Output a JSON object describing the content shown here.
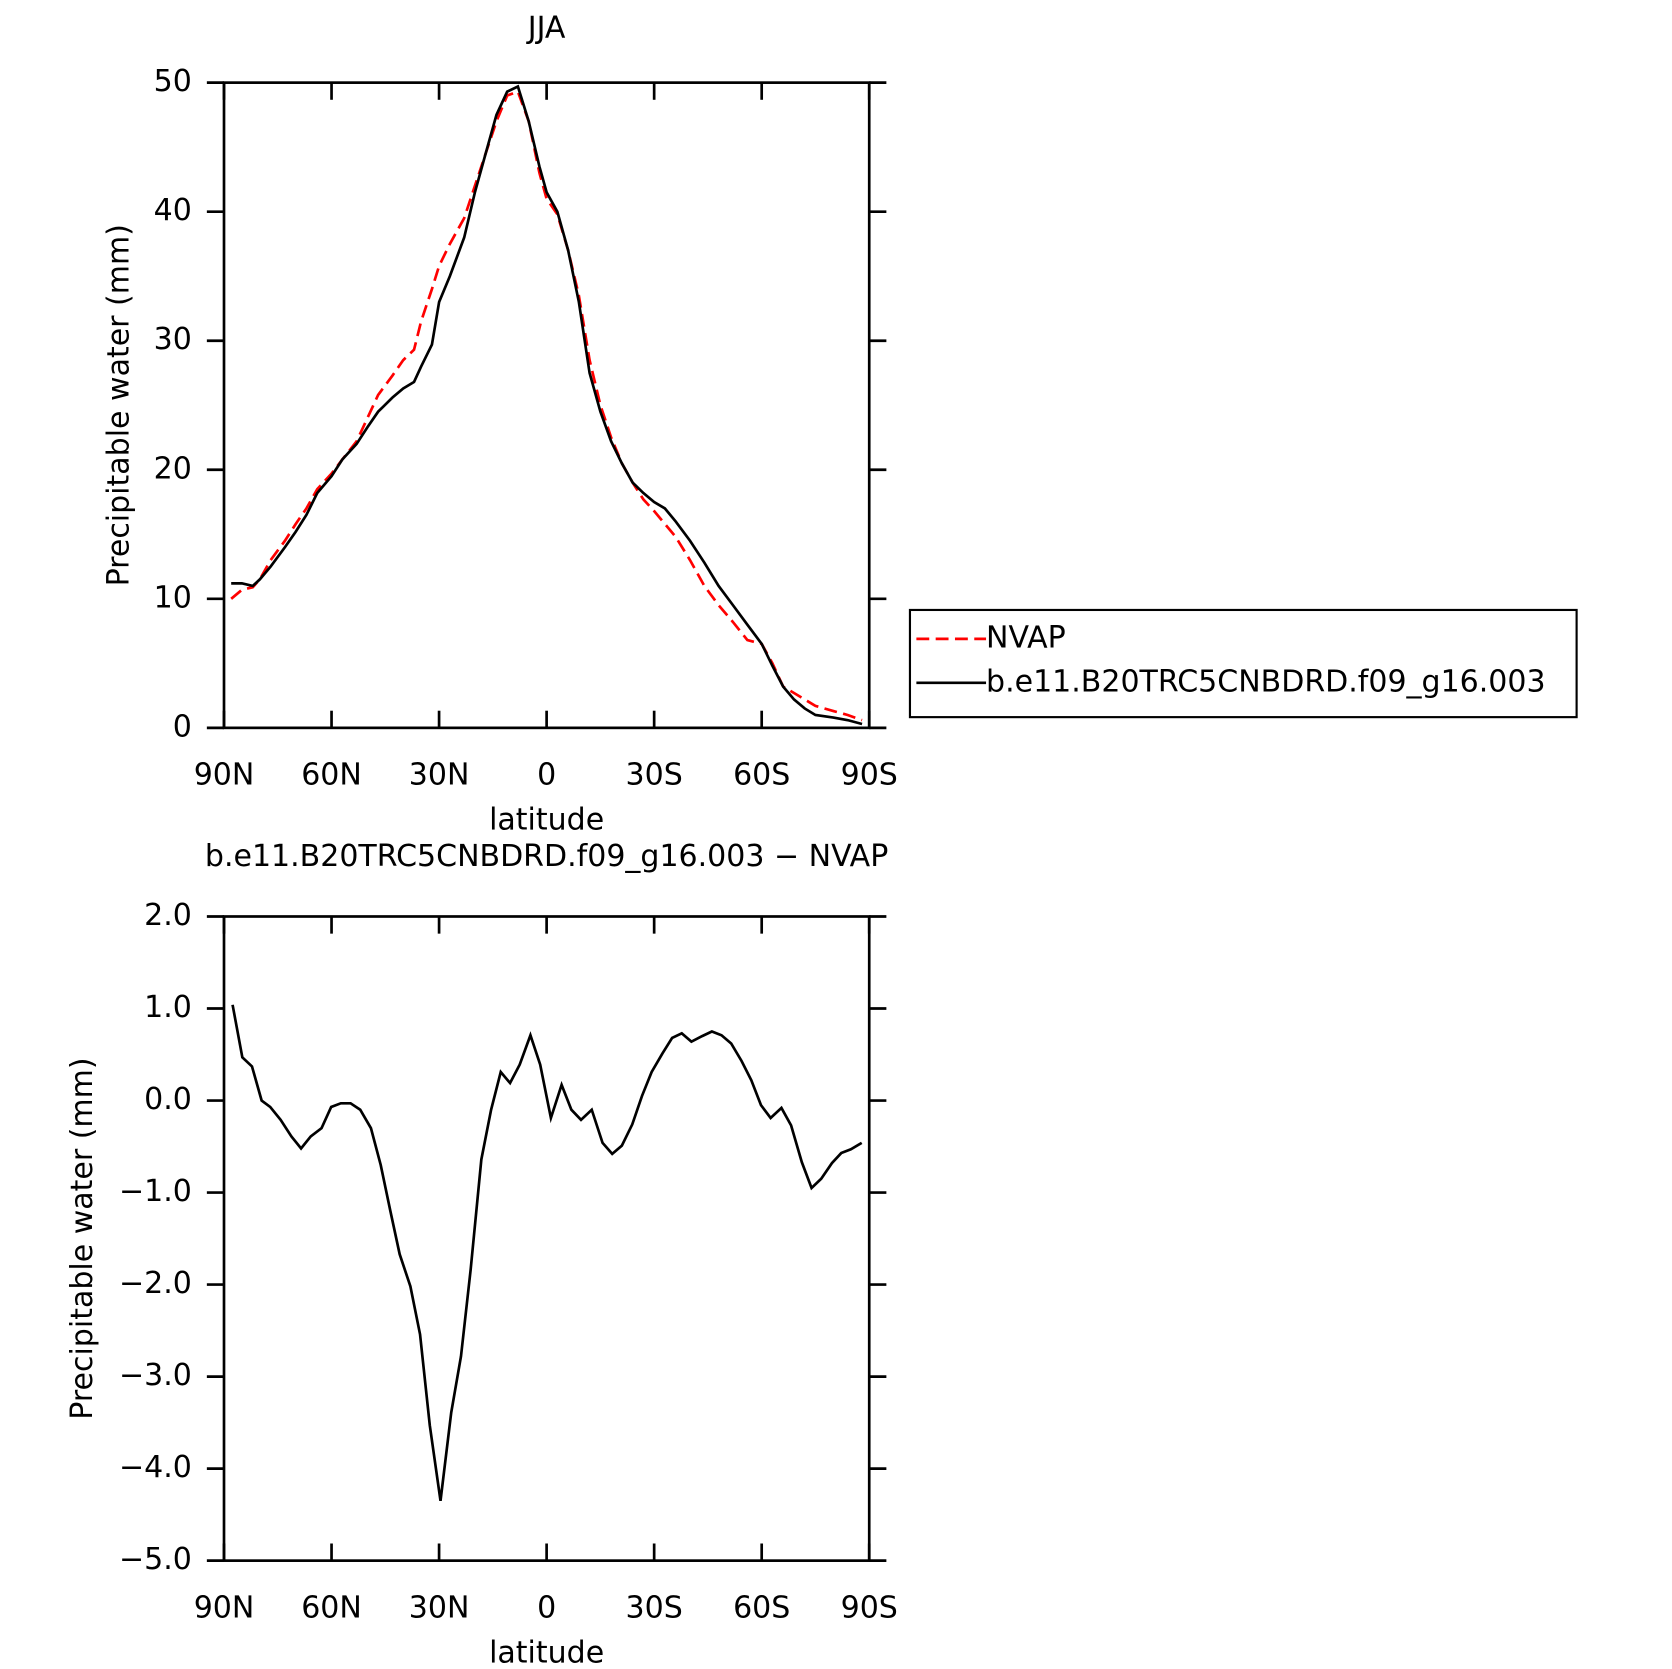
{
  "chart_data": [
    {
      "type": "line",
      "title": "JJA",
      "xlabel": "latitude",
      "ylabel": "Precipitable water (mm)",
      "xlim": [
        90,
        -90
      ],
      "xticks": [
        {
          "value": 90,
          "label": "90N"
        },
        {
          "value": 60,
          "label": "60N"
        },
        {
          "value": 30,
          "label": "30N"
        },
        0,
        {
          "value": -30,
          "label": "30S"
        },
        {
          "value": -60,
          "label": "60S"
        },
        {
          "value": -90,
          "label": "90S"
        }
      ],
      "ylim": [
        0,
        50
      ],
      "yticks": [
        0,
        10,
        20,
        30,
        40,
        50
      ],
      "legend": "right",
      "x": [
        88,
        85,
        82,
        80,
        77,
        73,
        70,
        67,
        64,
        60,
        57,
        53,
        50,
        47,
        43,
        40,
        37,
        35,
        32,
        30,
        27,
        23,
        20,
        17,
        14,
        11,
        8,
        5,
        2,
        0,
        -3,
        -6,
        -9,
        -12,
        -15,
        -18,
        -21,
        -24,
        -27,
        -30,
        -33,
        -36,
        -40,
        -44,
        -48,
        -52,
        -56,
        -60,
        -63,
        -66,
        -69,
        -72,
        -75,
        -80,
        -84,
        -88
      ],
      "series": [
        {
          "name": "NVAP",
          "color": "#ff0000",
          "dash": true,
          "values": [
            10.0,
            10.7,
            10.9,
            11.5,
            13,
            14.5,
            15.8,
            17,
            18.5,
            19.7,
            20.8,
            22.2,
            24,
            25.8,
            27.3,
            28.5,
            29.3,
            31.5,
            34,
            35.8,
            37.5,
            39.5,
            42,
            44.5,
            47,
            49,
            49.3,
            47,
            43,
            41,
            39.8,
            37,
            33.5,
            28.5,
            25,
            22.5,
            20.5,
            19,
            17.7,
            16.8,
            15.8,
            14.8,
            13,
            11,
            9.5,
            8.2,
            6.8,
            6.5,
            5,
            3.2,
            2.7,
            2.2,
            1.7,
            1.3,
            1.0,
            0.6
          ]
        },
        {
          "name": "b.e11.B20TRC5CNBDRD.f09_g16.003",
          "color": "#000000",
          "dash": false,
          "values": [
            11.2,
            11.2,
            11.0,
            11.5,
            12.5,
            14.0,
            15.2,
            16.5,
            18.2,
            19.5,
            20.8,
            22.0,
            23.3,
            24.5,
            25.6,
            26.3,
            26.8,
            28,
            29.7,
            33,
            35,
            38,
            41.5,
            44.5,
            47.5,
            49.3,
            49.7,
            47,
            43.5,
            41.5,
            40,
            37,
            33,
            27.5,
            24.5,
            22.2,
            20.5,
            19,
            18.2,
            17.5,
            17.0,
            16,
            14.5,
            12.8,
            11.0,
            9.5,
            8.0,
            6.5,
            4.8,
            3.2,
            2.2,
            1.5,
            1.0,
            0.8,
            0.6,
            0.3
          ]
        }
      ]
    },
    {
      "type": "line",
      "title": "b.e11.B20TRC5CNBDRD.f09_g16.003 − NVAP",
      "xlabel": "latitude",
      "ylabel": "Precipitable water (mm)",
      "xlim": [
        90,
        -90
      ],
      "xticks": [
        {
          "value": 90,
          "label": "90N"
        },
        {
          "value": 60,
          "label": "60N"
        },
        {
          "value": 30,
          "label": "30N"
        },
        0,
        {
          "value": -30,
          "label": "30S"
        },
        {
          "value": -60,
          "label": "60S"
        },
        {
          "value": -90,
          "label": "90S"
        }
      ],
      "ylim": [
        -5,
        2
      ],
      "yticks": [
        {
          "value": -5,
          "label": "−5.0"
        },
        {
          "value": -4,
          "label": "−4.0"
        },
        {
          "value": -3,
          "label": "−3.0"
        },
        {
          "value": -2,
          "label": "−2.0"
        },
        {
          "value": -1,
          "label": "−1.0"
        },
        {
          "value": 0,
          "label": "0.0"
        },
        {
          "value": 1,
          "label": "1.0"
        },
        {
          "value": 2,
          "label": "2.0"
        }
      ],
      "color": "#000000",
      "x": [
        87.6,
        84.9,
        82.2,
        79.5,
        77.1,
        74.2,
        71.2,
        68.5,
        65.8,
        62.8,
        60.1,
        57.4,
        54.7,
        52,
        49,
        46.3,
        43.6,
        41,
        38,
        35.3,
        32.6,
        29.6,
        26.6,
        23.9,
        21.2,
        18.2,
        15.5,
        12.8,
        10.2,
        7.5,
        4.5,
        1.8,
        -1.2,
        -4.2,
        -6.9,
        -9.6,
        -12.6,
        -15.6,
        -18.3,
        -21,
        -23.9,
        -26.6,
        -29.3,
        -32.3,
        -35,
        -37.7,
        -40.4,
        -43.4,
        -46.1,
        -48.8,
        -51.5,
        -54.4,
        -57.1,
        -59.8,
        -62.5,
        -65.5,
        -68.2,
        -71.2,
        -73.9,
        -76.6,
        -79.6,
        -82.2,
        -84.9,
        -87.9
      ],
      "values": [
        1.04,
        0.47,
        0.37,
        0.0,
        -0.07,
        -0.21,
        -0.39,
        -0.52,
        -0.39,
        -0.3,
        -0.07,
        -0.03,
        -0.03,
        -0.1,
        -0.3,
        -0.7,
        -1.2,
        -1.67,
        -2.02,
        -2.54,
        -3.53,
        -4.35,
        -3.39,
        -2.78,
        -1.84,
        -0.64,
        -0.1,
        0.31,
        0.19,
        0.39,
        0.71,
        0.39,
        -0.19,
        0.17,
        -0.1,
        -0.21,
        -0.1,
        -0.46,
        -0.58,
        -0.49,
        -0.26,
        0.05,
        0.31,
        0.51,
        0.68,
        0.73,
        0.64,
        0.7,
        0.75,
        0.71,
        0.62,
        0.43,
        0.22,
        -0.05,
        -0.19,
        -0.08,
        -0.27,
        -0.67,
        -0.95,
        -0.85,
        -0.68,
        -0.57,
        -0.53,
        -0.46
      ]
    }
  ]
}
